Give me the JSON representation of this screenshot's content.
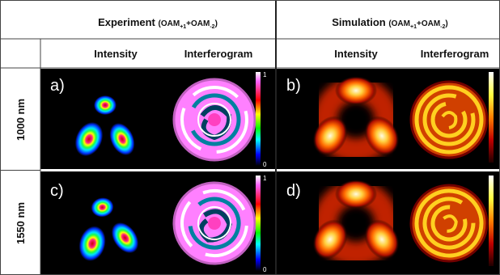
{
  "header": {
    "experiment": {
      "title": "Experiment",
      "prefix": "(OAM",
      "sub1": "+1",
      "mid": "+OAM",
      "sub2": "-2",
      "suffix": ")"
    },
    "simulation": {
      "title": "Simulation",
      "prefix": "(OAM",
      "sub1": "+1",
      "mid": "+OAM",
      "sub2": "-2",
      "suffix": ")"
    }
  },
  "columns": [
    "Intensity",
    "Interferogram",
    "Intensity",
    "Interferogram"
  ],
  "rows": [
    {
      "label": "1000 nm",
      "panels": [
        "a)",
        "b)"
      ],
      "colorbar_ticks": [
        1,
        0
      ]
    },
    {
      "label": "1550 nm",
      "panels": [
        "c)",
        "d)"
      ],
      "colorbar_ticks": [
        1,
        0
      ]
    }
  ]
}
